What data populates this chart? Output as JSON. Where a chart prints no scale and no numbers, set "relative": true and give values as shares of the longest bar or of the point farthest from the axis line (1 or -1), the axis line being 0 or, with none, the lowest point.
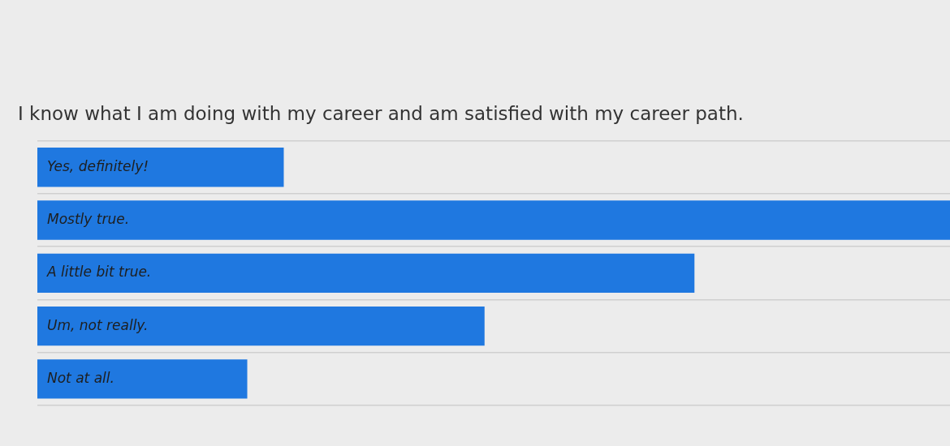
{
  "chart_data": {
    "type": "bar",
    "orientation": "horizontal",
    "relative": true,
    "title": "I know what I am doing with my career and am satisfied with my career path.",
    "categories": [
      "Yes, definitely!",
      "Mostly true.",
      "A little bit true.",
      "Um, not really.",
      "Not at all."
    ],
    "values": [
      0.27,
      1,
      0.72,
      0.49,
      0.23
    ],
    "color": "#1f78e0",
    "grid": "y"
  }
}
